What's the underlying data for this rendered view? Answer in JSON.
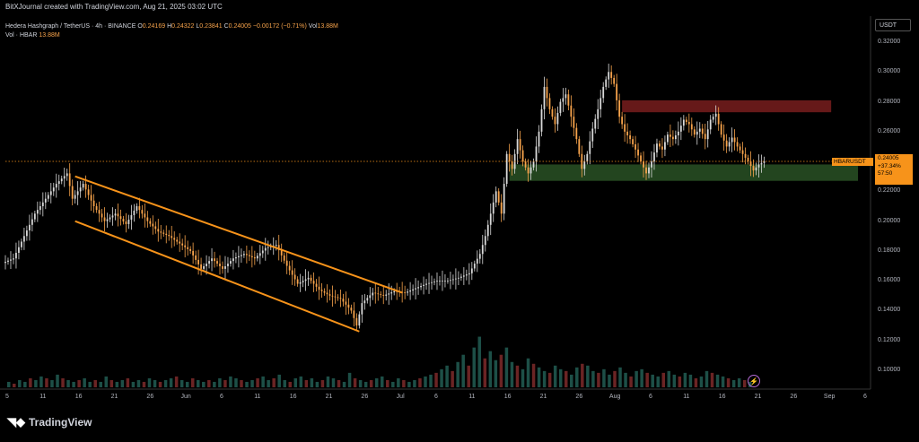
{
  "header": {
    "attribution": "BitXJournal created with TradingView.com, Aug 21, 2025 03:02 UTC"
  },
  "legend": {
    "symbol_line": "Hedera Hashgraph / TetherUS · 4h · BINANCE",
    "open_label": "O",
    "open": "0.24169",
    "high_label": "H",
    "high": "0.24322",
    "low_label": "L",
    "low": "0.23841",
    "close_label": "C",
    "close": "0.24005",
    "change": "−0.00172 (−0.71%)",
    "vol_label": "Vol",
    "vol": "13.88M",
    "vol_line_label": "Vol · HBAR",
    "vol_line_value": "13.88M"
  },
  "currency": "USDT",
  "price_tag": {
    "symbol": "HBARUSDT",
    "price": "0.24005",
    "change_pct": "+37.34%",
    "countdown": "57:50"
  },
  "branding": "TradingView",
  "colors": {
    "candle": "#d9d9d9",
    "candle_up_accent": "#f7a34b",
    "channel": "#f7931a",
    "resistance_zone": "#6b1a1a",
    "support_zone": "#274d22",
    "volume_up": "#1d4f47",
    "volume_down": "#6b2424",
    "price_line": "#f7931a"
  },
  "chart_data": {
    "type": "candlestick",
    "title": "",
    "y_ticks": [
      "0.32000",
      "0.30000",
      "0.28000",
      "0.26000",
      "0.24000",
      "0.22000",
      "0.20000",
      "0.18000",
      "0.16000",
      "0.14000",
      "0.12000",
      "0.10000"
    ],
    "x_ticks": [
      "5",
      "11",
      "16",
      "21",
      "26",
      "Jun",
      "6",
      "11",
      "16",
      "21",
      "26",
      "Jul",
      "6",
      "11",
      "16",
      "21",
      "26",
      "Aug",
      "6",
      "11",
      "16",
      "21",
      "26",
      "Sep",
      "6"
    ],
    "ylim": [
      0.09,
      0.33
    ],
    "price_path": [
      {
        "t": 0,
        "p": 0.172
      },
      {
        "t": 2,
        "p": 0.175
      },
      {
        "t": 4,
        "p": 0.19
      },
      {
        "t": 6,
        "p": 0.205
      },
      {
        "t": 8,
        "p": 0.215
      },
      {
        "t": 10,
        "p": 0.225
      },
      {
        "t": 12,
        "p": 0.232
      },
      {
        "t": 13,
        "p": 0.215
      },
      {
        "t": 15,
        "p": 0.225
      },
      {
        "t": 17,
        "p": 0.21
      },
      {
        "t": 19,
        "p": 0.2
      },
      {
        "t": 21,
        "p": 0.205
      },
      {
        "t": 23,
        "p": 0.198
      },
      {
        "t": 25,
        "p": 0.21
      },
      {
        "t": 27,
        "p": 0.2
      },
      {
        "t": 29,
        "p": 0.193
      },
      {
        "t": 31,
        "p": 0.19
      },
      {
        "t": 33,
        "p": 0.185
      },
      {
        "t": 35,
        "p": 0.18
      },
      {
        "t": 37,
        "p": 0.168
      },
      {
        "t": 39,
        "p": 0.175
      },
      {
        "t": 41,
        "p": 0.168
      },
      {
        "t": 43,
        "p": 0.175
      },
      {
        "t": 45,
        "p": 0.178
      },
      {
        "t": 47,
        "p": 0.175
      },
      {
        "t": 49,
        "p": 0.182
      },
      {
        "t": 51,
        "p": 0.184
      },
      {
        "t": 53,
        "p": 0.17
      },
      {
        "t": 55,
        "p": 0.158
      },
      {
        "t": 57,
        "p": 0.162
      },
      {
        "t": 59,
        "p": 0.154
      },
      {
        "t": 61,
        "p": 0.15
      },
      {
        "t": 63,
        "p": 0.148
      },
      {
        "t": 65,
        "p": 0.14
      },
      {
        "t": 66,
        "p": 0.13
      },
      {
        "t": 67,
        "p": 0.145
      },
      {
        "t": 69,
        "p": 0.152
      },
      {
        "t": 71,
        "p": 0.15
      },
      {
        "t": 73,
        "p": 0.153
      },
      {
        "t": 75,
        "p": 0.152
      },
      {
        "t": 77,
        "p": 0.155
      },
      {
        "t": 79,
        "p": 0.158
      },
      {
        "t": 81,
        "p": 0.16
      },
      {
        "t": 83,
        "p": 0.16
      },
      {
        "t": 85,
        "p": 0.162
      },
      {
        "t": 87,
        "p": 0.165
      },
      {
        "t": 89,
        "p": 0.178
      },
      {
        "t": 90,
        "p": 0.19
      },
      {
        "t": 91,
        "p": 0.205
      },
      {
        "t": 92,
        "p": 0.22
      },
      {
        "t": 93,
        "p": 0.205
      },
      {
        "t": 94,
        "p": 0.245
      },
      {
        "t": 95,
        "p": 0.235
      },
      {
        "t": 96,
        "p": 0.255
      },
      {
        "t": 97,
        "p": 0.24
      },
      {
        "t": 98,
        "p": 0.232
      },
      {
        "t": 99,
        "p": 0.24
      },
      {
        "t": 100,
        "p": 0.26
      },
      {
        "t": 101,
        "p": 0.29
      },
      {
        "t": 102,
        "p": 0.275
      },
      {
        "t": 103,
        "p": 0.265
      },
      {
        "t": 104,
        "p": 0.28
      },
      {
        "t": 105,
        "p": 0.285
      },
      {
        "t": 106,
        "p": 0.27
      },
      {
        "t": 107,
        "p": 0.255
      },
      {
        "t": 108,
        "p": 0.235
      },
      {
        "t": 109,
        "p": 0.245
      },
      {
        "t": 110,
        "p": 0.262
      },
      {
        "t": 111,
        "p": 0.275
      },
      {
        "t": 112,
        "p": 0.29
      },
      {
        "t": 113,
        "p": 0.3
      },
      {
        "t": 114,
        "p": 0.292
      },
      {
        "t": 115,
        "p": 0.27
      },
      {
        "t": 116,
        "p": 0.26
      },
      {
        "t": 117,
        "p": 0.255
      },
      {
        "t": 118,
        "p": 0.248
      },
      {
        "t": 119,
        "p": 0.24
      },
      {
        "t": 120,
        "p": 0.232
      },
      {
        "t": 121,
        "p": 0.24
      },
      {
        "t": 122,
        "p": 0.252
      },
      {
        "t": 123,
        "p": 0.248
      },
      {
        "t": 124,
        "p": 0.258
      },
      {
        "t": 125,
        "p": 0.255
      },
      {
        "t": 126,
        "p": 0.26
      },
      {
        "t": 127,
        "p": 0.268
      },
      {
        "t": 128,
        "p": 0.265
      },
      {
        "t": 129,
        "p": 0.258
      },
      {
        "t": 130,
        "p": 0.262
      },
      {
        "t": 131,
        "p": 0.255
      },
      {
        "t": 132,
        "p": 0.268
      },
      {
        "t": 133,
        "p": 0.272
      },
      {
        "t": 134,
        "p": 0.258
      },
      {
        "t": 135,
        "p": 0.25
      },
      {
        "t": 136,
        "p": 0.256
      },
      {
        "t": 137,
        "p": 0.25
      },
      {
        "t": 138,
        "p": 0.245
      },
      {
        "t": 139,
        "p": 0.24
      },
      {
        "t": 140,
        "p": 0.234
      },
      {
        "t": 141,
        "p": 0.238
      },
      {
        "t": 142,
        "p": 0.24
      }
    ],
    "channel": {
      "upper": [
        {
          "t": 13,
          "p": 0.23
        },
        {
          "t": 74,
          "p": 0.152
        }
      ],
      "lower": [
        {
          "t": 13,
          "p": 0.2
        },
        {
          "t": 66,
          "p": 0.126
        }
      ]
    },
    "resistance_zone": {
      "t_start": 115,
      "t_end": 154,
      "p_low": 0.273,
      "p_high": 0.281
    },
    "support_zone": {
      "t_start": 94,
      "t_end": 159,
      "p_low": 0.227,
      "p_high": 0.238
    },
    "last_price": 0.24005,
    "volume_ylim": [
      0,
      30
    ],
    "volume": [
      3,
      2,
      4,
      3,
      5,
      4,
      6,
      5,
      4,
      7,
      5,
      4,
      3,
      4,
      5,
      3,
      4,
      3,
      6,
      4,
      3,
      4,
      5,
      3,
      4,
      3,
      5,
      4,
      3,
      4,
      5,
      6,
      4,
      3,
      5,
      4,
      3,
      4,
      3,
      5,
      4,
      6,
      5,
      4,
      3,
      4,
      5,
      6,
      4,
      5,
      7,
      4,
      3,
      5,
      6,
      4,
      5,
      3,
      4,
      6,
      5,
      4,
      3,
      8,
      5,
      4,
      3,
      4,
      5,
      6,
      4,
      3,
      5,
      4,
      3,
      4,
      5,
      6,
      7,
      8,
      10,
      12,
      9,
      14,
      18,
      12,
      22,
      28,
      16,
      20,
      15,
      18,
      22,
      14,
      12,
      10,
      16,
      13,
      11,
      9,
      8,
      12,
      10,
      9,
      7,
      11,
      13,
      12,
      9,
      8,
      10,
      7,
      9,
      11,
      8,
      6,
      9,
      10,
      8,
      7,
      6,
      8,
      9,
      7,
      6,
      8,
      7,
      5,
      6,
      9,
      8,
      7,
      6,
      5,
      4,
      5,
      4,
      3
    ]
  }
}
